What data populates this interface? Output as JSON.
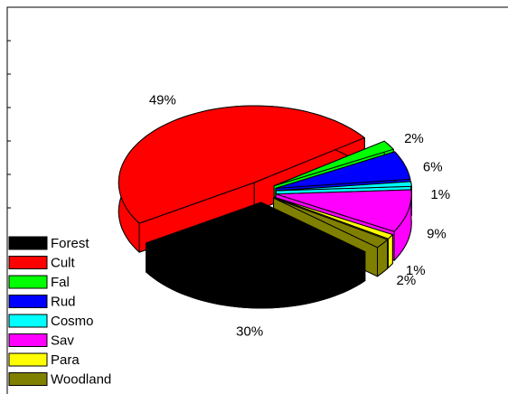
{
  "chart_data": {
    "type": "pie",
    "categories": [
      "Forest",
      "Cult",
      "Fal",
      "Rud",
      "Cosmo",
      "Sav",
      "Para",
      "Woodland"
    ],
    "values": [
      30,
      49,
      2,
      6,
      1,
      9,
      1,
      2
    ],
    "value_labels": [
      "30%",
      "49%",
      "2%",
      "6%",
      "1%",
      "9%",
      "1%",
      "2%"
    ],
    "colors": [
      "#000000",
      "#ff0000",
      "#00ff00",
      "#0000ff",
      "#00ffff",
      "#ff00ff",
      "#ffff00",
      "#808000"
    ],
    "legend": "lower left"
  }
}
